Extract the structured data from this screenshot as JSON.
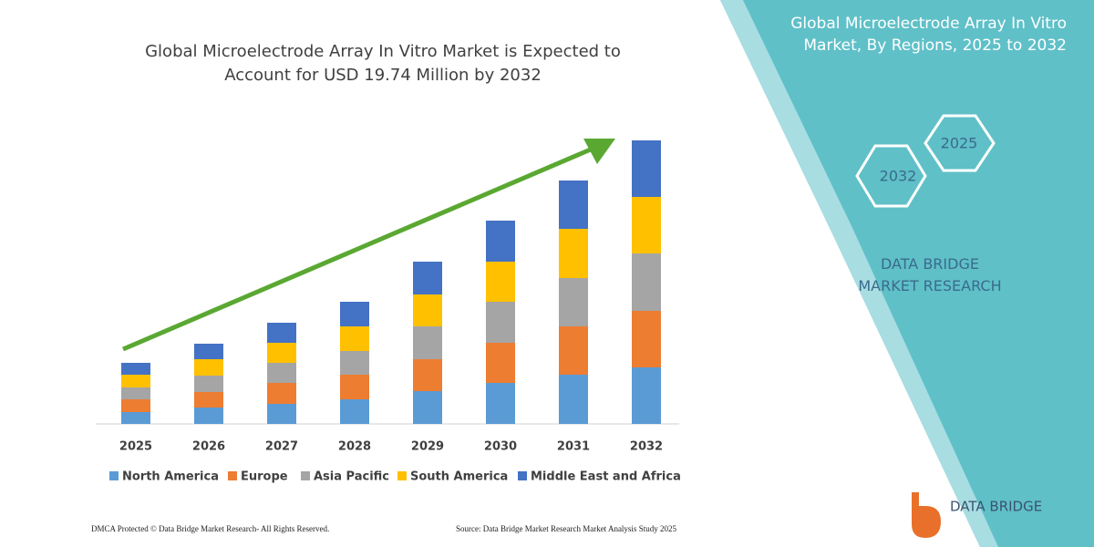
{
  "chart_data": {
    "type": "stacked_bar",
    "title": "Global Microelectrode Array In Vitro Market is Expected to Account for USD 19.74 Million by 2032",
    "categories": [
      "2025",
      "2026",
      "2027",
      "2028",
      "2029",
      "2030",
      "2031",
      "2032"
    ],
    "ylim": [
      0,
      311
    ],
    "series": [
      {
        "name": "North America",
        "color": "#5b9bd5",
        "values": [
          13,
          18,
          22,
          27,
          36,
          45,
          54,
          62
        ]
      },
      {
        "name": "Europe",
        "color": "#ed7d31",
        "values": [
          14,
          17,
          23,
          27,
          35,
          44,
          53,
          62
        ]
      },
      {
        "name": "Asia Pacific",
        "color": "#a5a5a5",
        "values": [
          13,
          18,
          22,
          26,
          36,
          45,
          53,
          63
        ]
      },
      {
        "name": "South America",
        "color": "#ffc000",
        "values": [
          14,
          18,
          22,
          27,
          35,
          44,
          54,
          62
        ]
      },
      {
        "name": "Middle East and Africa",
        "color": "#4472c4",
        "values": [
          13,
          17,
          22,
          27,
          36,
          45,
          53,
          62
        ]
      }
    ]
  },
  "panel": {
    "title": "Global Microelectrode Array In Vitro Market, By Regions, 2025 to 2032",
    "hex_labels": [
      "2025",
      "2032"
    ],
    "brand": "DATA BRIDGE MARKET RESEARCH"
  },
  "footer": {
    "left": "DMCA Protected © Data Bridge Market Research- All Rights Reserved.",
    "right": "Source: Data Bridge Market Research Market Analysis Study 2025"
  },
  "logo": {
    "text": "DATA BRIDGE"
  }
}
